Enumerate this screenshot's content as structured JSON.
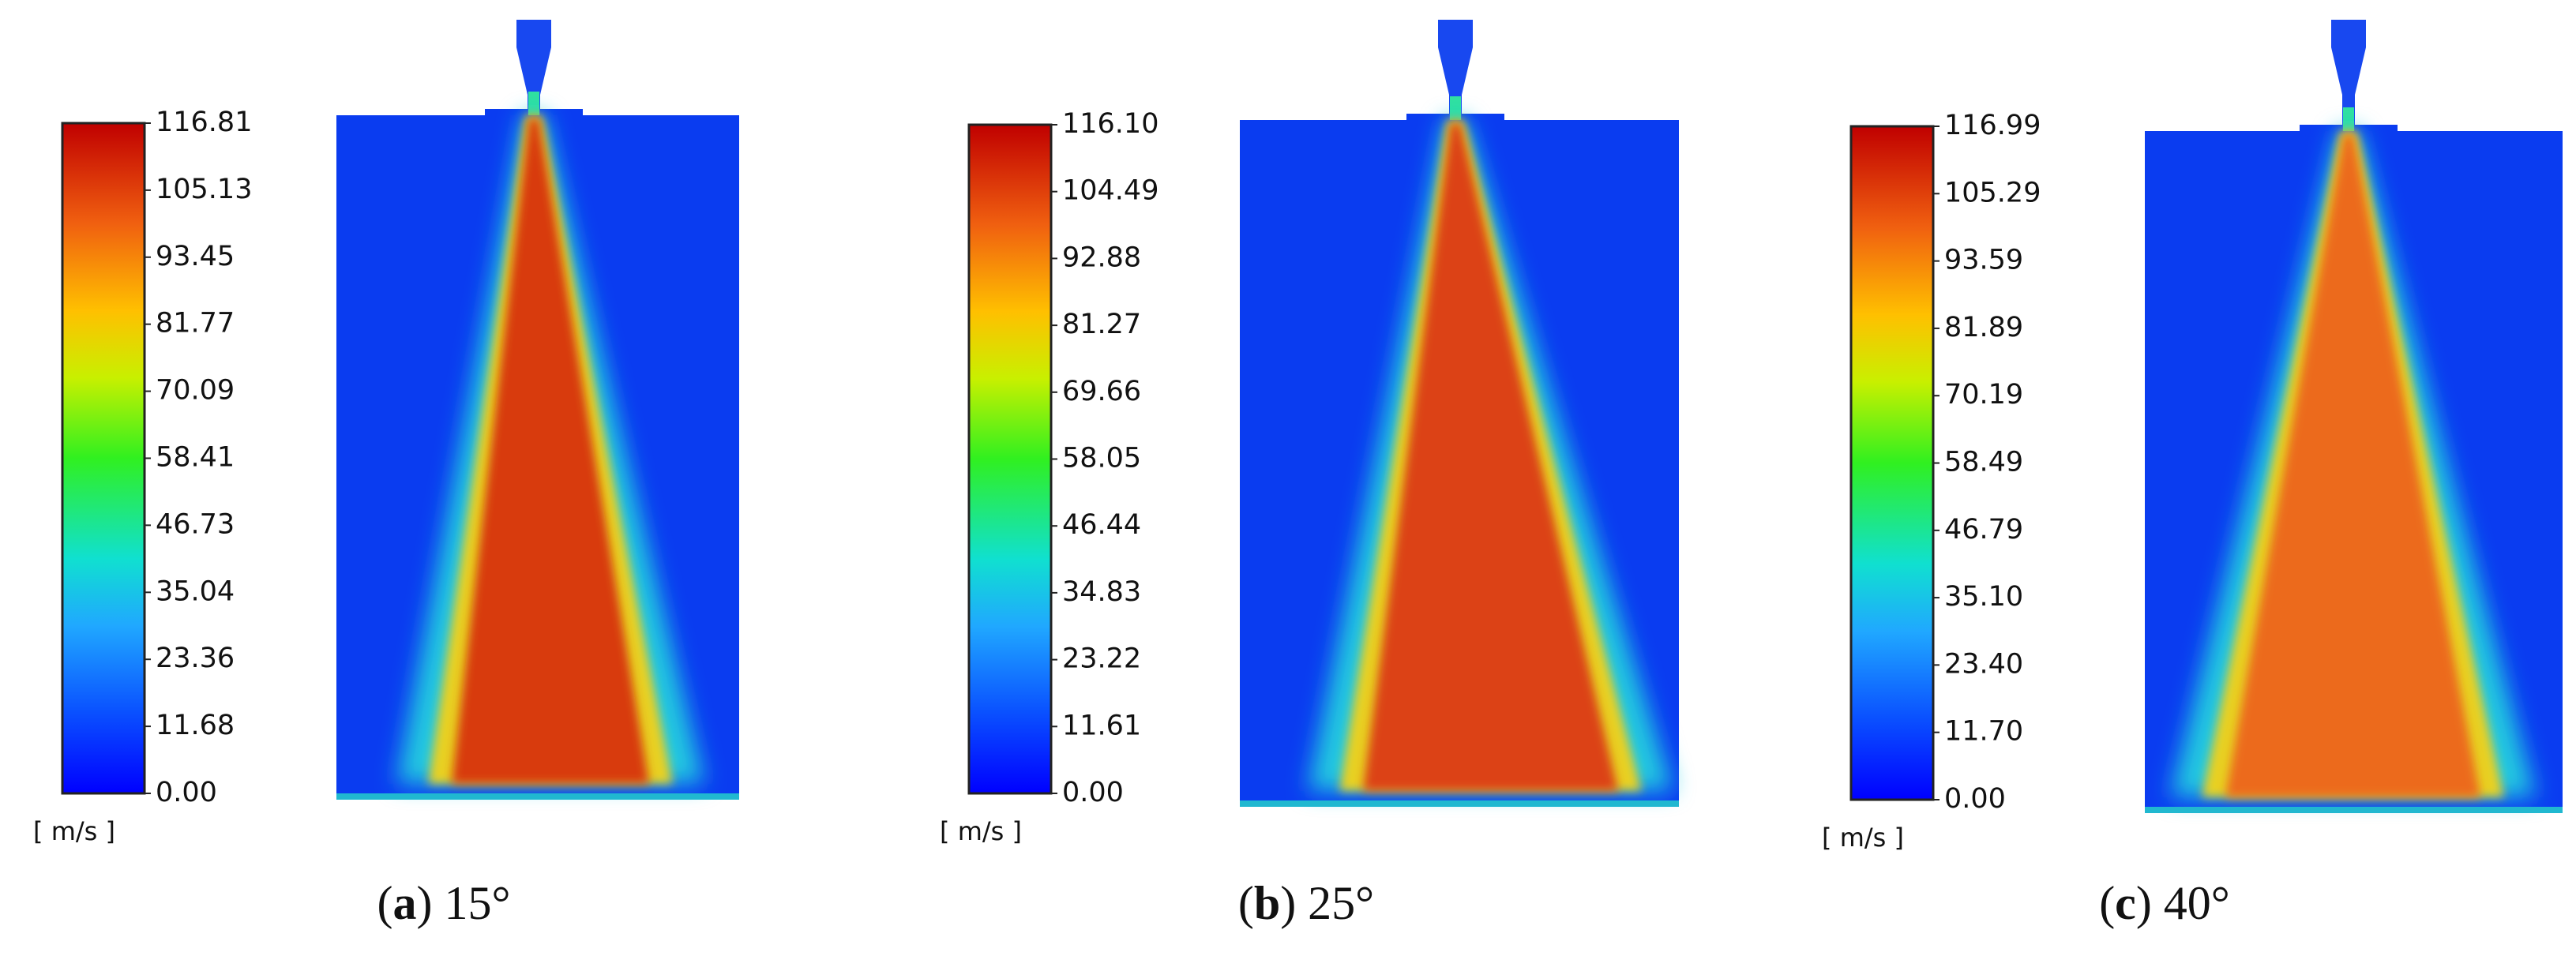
{
  "panels": [
    {
      "caption": [
        {
          "text": "(",
          "bold": false
        },
        {
          "text": "a",
          "bold": true
        },
        {
          "text": ") 15°",
          "bold": false
        }
      ],
      "unit": "[ m/s ]",
      "colorbar_lim": [
        0,
        116.81
      ],
      "colorbar_ticks": [
        {
          "value": 0,
          "label": "0.00"
        },
        {
          "value": 11.68,
          "label": "11.68"
        },
        {
          "value": 23.36,
          "label": "23.36"
        },
        {
          "value": 35.04,
          "label": "35.04"
        },
        {
          "value": 46.73,
          "label": "46.73"
        },
        {
          "value": 58.41,
          "label": "58.41"
        },
        {
          "value": 70.09,
          "label": "70.09"
        },
        {
          "value": 81.77,
          "label": "81.77"
        },
        {
          "value": 93.45,
          "label": "93.45"
        },
        {
          "value": 105.13,
          "label": "105.13"
        },
        {
          "value": 116.81,
          "label": "116.81"
        }
      ]
    },
    {
      "caption": [
        {
          "text": "(",
          "bold": false
        },
        {
          "text": "b",
          "bold": true
        },
        {
          "text": ") 25°",
          "bold": false
        }
      ],
      "unit": "[ m/s ]",
      "colorbar_lim": [
        0,
        116.1
      ],
      "colorbar_ticks": [
        {
          "value": 0,
          "label": "0.00"
        },
        {
          "value": 11.61,
          "label": "11.61"
        },
        {
          "value": 23.22,
          "label": "23.22"
        },
        {
          "value": 34.83,
          "label": "34.83"
        },
        {
          "value": 46.44,
          "label": "46.44"
        },
        {
          "value": 58.05,
          "label": "58.05"
        },
        {
          "value": 69.66,
          "label": "69.66"
        },
        {
          "value": 81.27,
          "label": "81.27"
        },
        {
          "value": 92.88,
          "label": "92.88"
        },
        {
          "value": 104.49,
          "label": "104.49"
        },
        {
          "value": 116.1,
          "label": "116.10"
        }
      ]
    },
    {
      "caption": [
        {
          "text": "(",
          "bold": false
        },
        {
          "text": "c",
          "bold": true
        },
        {
          "text": ") 40°",
          "bold": false
        }
      ],
      "unit": "[ m/s ]",
      "colorbar_lim": [
        0,
        116.99
      ],
      "colorbar_ticks": [
        {
          "value": 0,
          "label": "0.00"
        },
        {
          "value": 11.7,
          "label": "11.70"
        },
        {
          "value": 23.4,
          "label": "23.40"
        },
        {
          "value": 35.1,
          "label": "35.10"
        },
        {
          "value": 46.79,
          "label": "46.79"
        },
        {
          "value": 58.49,
          "label": "58.49"
        },
        {
          "value": 70.19,
          "label": "70.19"
        },
        {
          "value": 81.89,
          "label": "81.89"
        },
        {
          "value": 93.59,
          "label": "93.59"
        },
        {
          "value": 105.29,
          "label": "105.29"
        },
        {
          "value": 116.99,
          "label": "116.99"
        }
      ]
    }
  ]
}
